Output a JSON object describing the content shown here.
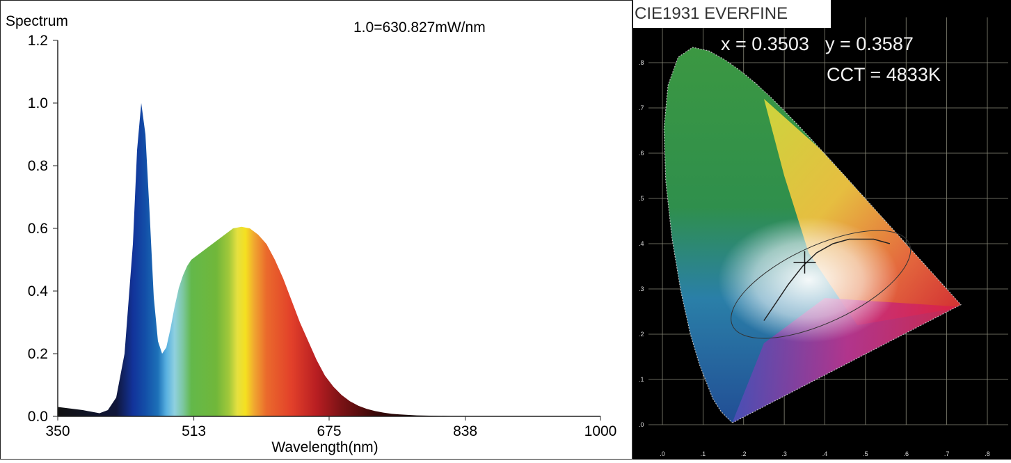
{
  "chart_data": [
    {
      "type": "area",
      "title": "Spectrum",
      "subtitle": "1.0=630.827mW/nm",
      "xlabel": "Wavelength(nm)",
      "ylabel": "",
      "xlim": [
        350,
        1000
      ],
      "ylim": [
        0,
        1.2
      ],
      "xticks": [
        "350",
        "513",
        "675",
        "838",
        "1000"
      ],
      "yticks": [
        "0.0",
        "0.2",
        "0.4",
        "0.6",
        "0.8",
        "1.0",
        "1.2"
      ],
      "grid": false,
      "series": [
        {
          "x": [
            350,
            380,
            400,
            410,
            420,
            430,
            440,
            445,
            450,
            455,
            460,
            465,
            470,
            475,
            480,
            485,
            490,
            495,
            500,
            505,
            510,
            520,
            530,
            540,
            550,
            560,
            570,
            580,
            590,
            600,
            610,
            620,
            630,
            640,
            650,
            660,
            670,
            680,
            690,
            700,
            710,
            720,
            730,
            740,
            750,
            760,
            780,
            800,
            820,
            850,
            900,
            950,
            1000
          ],
          "values": [
            0.03,
            0.02,
            0.01,
            0.02,
            0.06,
            0.2,
            0.55,
            0.85,
            1.0,
            0.9,
            0.65,
            0.38,
            0.24,
            0.2,
            0.22,
            0.28,
            0.35,
            0.41,
            0.45,
            0.48,
            0.5,
            0.52,
            0.54,
            0.56,
            0.58,
            0.6,
            0.605,
            0.6,
            0.58,
            0.55,
            0.5,
            0.44,
            0.37,
            0.3,
            0.24,
            0.18,
            0.13,
            0.095,
            0.068,
            0.048,
            0.034,
            0.024,
            0.017,
            0.012,
            0.008,
            0.006,
            0.003,
            0.002,
            0.001,
            0.0,
            0.0,
            0.0,
            0.0
          ]
        }
      ]
    },
    {
      "type": "scatter",
      "title": "CIE1931 EVERFINE",
      "xlim": [
        0,
        0.8
      ],
      "ylim": [
        0,
        0.9
      ],
      "xticks": [
        ".0",
        ".1",
        ".2",
        ".3",
        ".4",
        ".5",
        ".6",
        ".7",
        ".8"
      ],
      "yticks": [
        ".0",
        ".1",
        ".2",
        ".3",
        ".4",
        ".5",
        ".6",
        ".7",
        ".8"
      ],
      "x_readout": "x = 0.3503",
      "y_readout": "y = 0.3587",
      "cct_readout": "CCT = 4833K",
      "point": {
        "x": 0.3503,
        "y": 0.3587
      }
    }
  ]
}
